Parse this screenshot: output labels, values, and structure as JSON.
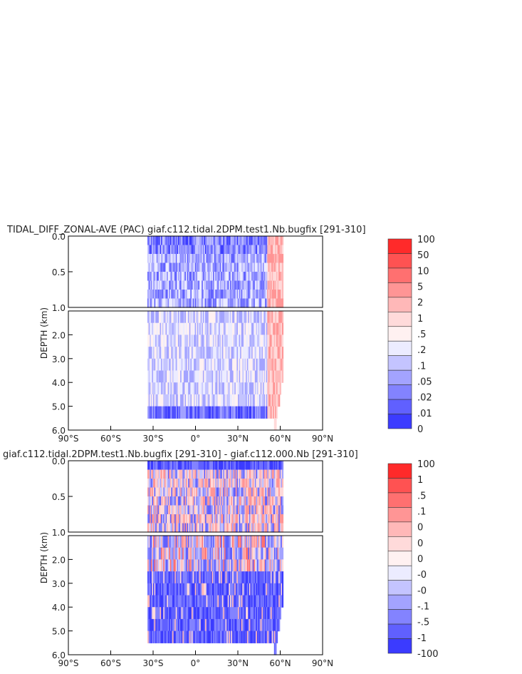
{
  "chart_data": [
    {
      "type": "heatmap",
      "title": "TIDAL_DIFF_ZONAL-AVE (PAC) giaf.c112.tidal.2DPM.test1.Nb.bugfix [291-310]",
      "ylabel": "DEPTH (km)",
      "x_tick_labels": [
        "90°S",
        "60°S",
        "30°S",
        "0°",
        "30°N",
        "60°N",
        "90°N"
      ],
      "x_ticks": [
        -90,
        -60,
        -30,
        0,
        30,
        60,
        90
      ],
      "xlim": [
        -90,
        90
      ],
      "upper_y_tick_labels": [
        "0.0",
        "0.5",
        "1.0"
      ],
      "upper_y_ticks": [
        0,
        0.5,
        1.0
      ],
      "upper_ylim": [
        0,
        1.0
      ],
      "lower_y_tick_labels": [
        "2.0",
        "3.0",
        "4.0",
        "5.0",
        "6.0"
      ],
      "lower_y_ticks": [
        2,
        3,
        4,
        5,
        6
      ],
      "lower_ylim": [
        1.0,
        6.0
      ],
      "data_lon_range": [
        -34,
        62
      ],
      "legend_labels": [
        "100",
        "50",
        "10",
        "5",
        "2",
        "1",
        ".5",
        ".2",
        ".1",
        ".05",
        ".02",
        ".01",
        "0"
      ],
      "legend_colors": [
        "#ff2a2a",
        "#ff5252",
        "#ff7070",
        "#ff9595",
        "#ffb8b8",
        "#ffdada",
        "#fff1f1",
        "#ececff",
        "#c4c4ff",
        "#a3a3ff",
        "#8383ff",
        "#6060ff",
        "#3b3bff"
      ],
      "seed": 7,
      "pattern": "blue"
    },
    {
      "type": "heatmap",
      "title": "giaf.c112.tidal.2DPM.test1.Nb.bugfix [291-310] - giaf.c112.000.Nb [291-310]",
      "ylabel": "DEPTH (km)",
      "x_tick_labels": [
        "90°S",
        "60°S",
        "30°S",
        "0°",
        "30°N",
        "60°N",
        "90°N"
      ],
      "x_ticks": [
        -90,
        -60,
        -30,
        0,
        30,
        60,
        90
      ],
      "xlim": [
        -90,
        90
      ],
      "upper_y_tick_labels": [
        "0.0",
        "0.5",
        "1.0"
      ],
      "upper_y_ticks": [
        0,
        0.5,
        1.0
      ],
      "upper_ylim": [
        0,
        1.0
      ],
      "lower_y_tick_labels": [
        "2.0",
        "3.0",
        "4.0",
        "5.0",
        "6.0"
      ],
      "lower_y_ticks": [
        2,
        3,
        4,
        5,
        6
      ],
      "lower_ylim": [
        1.0,
        6.0
      ],
      "data_lon_range": [
        -34,
        62
      ],
      "legend_labels": [
        "100",
        "1",
        ".5",
        ".1",
        "0",
        "0",
        "0",
        "-0",
        "-0",
        "-.1",
        "-.5",
        "-1",
        "-100"
      ],
      "legend_colors": [
        "#ff2a2a",
        "#ff5252",
        "#ff7070",
        "#ff9595",
        "#ffb8b8",
        "#ffdada",
        "#fff1f1",
        "#ececff",
        "#c4c4ff",
        "#a3a3ff",
        "#8383ff",
        "#6060ff",
        "#3b3bff"
      ],
      "seed": 13,
      "pattern": "diff"
    }
  ]
}
